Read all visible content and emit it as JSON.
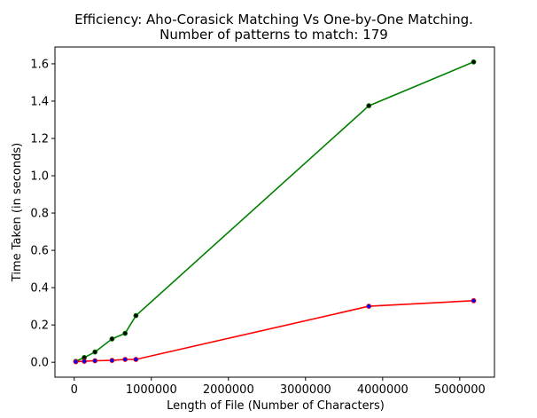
{
  "chart_data": {
    "type": "line",
    "title": "Efficiency: Aho-Corasick Matching Vs One-by-One Matching.",
    "subtitle": "Number of patterns to match: 179",
    "xlabel": "Length of File (Number of Characters)",
    "ylabel": "Time Taken (in seconds)",
    "xlim": [
      -250000,
      5450000
    ],
    "ylim": [
      -0.08,
      1.69
    ],
    "xticks": [
      0,
      1000000,
      2000000,
      3000000,
      4000000,
      5000000
    ],
    "xtick_labels": [
      "0",
      "1000000",
      "2000000",
      "3000000",
      "4000000",
      "5000000"
    ],
    "yticks": [
      0.0,
      0.2,
      0.4,
      0.6,
      0.8,
      1.0,
      1.2,
      1.4,
      1.6
    ],
    "ytick_labels": [
      "0.0",
      "0.2",
      "0.4",
      "0.6",
      "0.8",
      "1.0",
      "1.2",
      "1.4",
      "1.6"
    ],
    "grid": false,
    "legend": "none",
    "series": [
      {
        "color": "#008000",
        "marker_color": "#000000",
        "x": [
          20000,
          130000,
          270000,
          490000,
          660000,
          800000,
          3820000,
          5180000
        ],
        "y": [
          0.005,
          0.025,
          0.055,
          0.125,
          0.155,
          0.25,
          1.375,
          1.61
        ]
      },
      {
        "color": "#ff0000",
        "marker_color": "#0000ff",
        "x": [
          20000,
          130000,
          270000,
          490000,
          660000,
          800000,
          3820000,
          5180000
        ],
        "y": [
          0.003,
          0.005,
          0.008,
          0.01,
          0.015,
          0.015,
          0.3,
          0.33
        ]
      }
    ]
  }
}
